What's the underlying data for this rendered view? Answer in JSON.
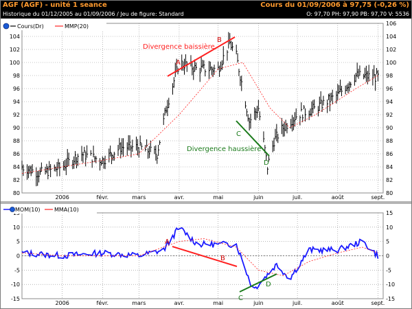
{
  "header": {
    "title": "AGF (AGF) - unité 1 seance",
    "quote": "Cours du 01/09/2006 à 97,75 (-0,26 %)",
    "history": "Historique du 01/12/2005 au 01/09/2006 / Jeu de figure: Standard",
    "ohlc": "O: 97,70  PH: 97,90  PB: 97,70  V: 5536"
  },
  "colors": {
    "price": "#000000",
    "average": "#ff2020",
    "momentum": "#1a1aff",
    "bearish": "#ff2020",
    "bullish": "#1a7a1a",
    "labelPoint": "#cc0000"
  },
  "chart_data": [
    {
      "type": "ohlc",
      "legend": [
        "Cours(Dr)",
        "MMP(20)"
      ],
      "x_ticks": [
        "2006",
        "févr.",
        "mars",
        "avr.",
        "mai",
        "juin",
        "juil.",
        "août",
        "sept."
      ],
      "ylim": [
        80,
        106
      ],
      "y_ticks": [
        80,
        82,
        84,
        86,
        88,
        90,
        92,
        94,
        96,
        98,
        100,
        102,
        104,
        106
      ],
      "grid": true,
      "series": [
        {
          "name": "Cours(Dr)",
          "x": [
            "2005-12-01",
            "2005-12-15",
            "2006-01-01",
            "2006-01-15",
            "2006-02-01",
            "2006-02-15",
            "2006-03-01",
            "2006-03-15",
            "2006-03-22",
            "2006-04-01",
            "2006-04-15",
            "2006-05-01",
            "2006-05-10",
            "2006-05-15",
            "2006-05-25",
            "2006-06-01",
            "2006-06-08",
            "2006-06-13",
            "2006-06-20",
            "2006-07-01",
            "2006-07-15",
            "2006-08-01",
            "2006-08-15",
            "2006-09-01"
          ],
          "close": [
            84,
            83,
            84,
            86,
            85,
            87,
            87,
            86,
            93,
            100,
            99,
            99,
            103,
            101,
            91,
            93,
            84,
            88,
            90,
            92,
            93,
            95,
            98,
            97.75
          ]
        },
        {
          "name": "MMP(20)",
          "x": [
            "2005-12-01",
            "2006-01-01",
            "2006-02-01",
            "2006-03-01",
            "2006-04-01",
            "2006-05-01",
            "2006-05-20",
            "2006-06-10",
            "2006-06-25",
            "2006-07-15",
            "2006-08-15",
            "2006-09-01"
          ],
          "values": [
            83,
            84,
            85,
            86,
            92,
            99,
            100,
            93,
            90,
            92,
            96,
            98
          ]
        }
      ],
      "annotations": [
        {
          "text": "Divergence baissière",
          "color": "#ff2020"
        },
        {
          "text": "Divergence haussière",
          "color": "#1a7a1a"
        },
        {
          "text": "A"
        },
        {
          "text": "B"
        },
        {
          "text": "C"
        },
        {
          "text": "D"
        }
      ]
    },
    {
      "type": "line",
      "legend": [
        "MOM(10)",
        "MMA(10)"
      ],
      "x_ticks": [
        "2006",
        "févr.",
        "mars",
        "avr.",
        "mai",
        "juin",
        "juil.",
        "août",
        "sept."
      ],
      "ylim": [
        -15,
        15
      ],
      "y_ticks": [
        -15,
        -10,
        -5,
        0,
        5,
        10,
        15
      ],
      "grid": true,
      "series": [
        {
          "name": "MOM(10)",
          "x": [
            "2005-12-01",
            "2006-01-01",
            "2006-02-01",
            "2006-03-01",
            "2006-03-20",
            "2006-04-01",
            "2006-04-15",
            "2006-05-01",
            "2006-05-15",
            "2006-05-28",
            "2006-06-05",
            "2006-06-15",
            "2006-06-25",
            "2006-07-10",
            "2006-08-01",
            "2006-08-20",
            "2006-09-01"
          ],
          "values": [
            1,
            0,
            1,
            0,
            2,
            10,
            4,
            4,
            4,
            -12,
            -8,
            -3,
            -8,
            2,
            2,
            5,
            0
          ]
        },
        {
          "name": "MMA(10)",
          "x": [
            "2005-12-01",
            "2006-01-01",
            "2006-02-01",
            "2006-03-01",
            "2006-04-01",
            "2006-04-20",
            "2006-05-15",
            "2006-06-01",
            "2006-06-20",
            "2006-07-10",
            "2006-08-01",
            "2006-08-20",
            "2006-09-01"
          ],
          "values": [
            1,
            0,
            0,
            0,
            5,
            6,
            3,
            -5,
            -7,
            -2,
            1,
            3,
            1
          ]
        }
      ],
      "annotations": [
        {
          "text": "A"
        },
        {
          "text": "B"
        },
        {
          "text": "C"
        },
        {
          "text": "D"
        }
      ]
    }
  ]
}
